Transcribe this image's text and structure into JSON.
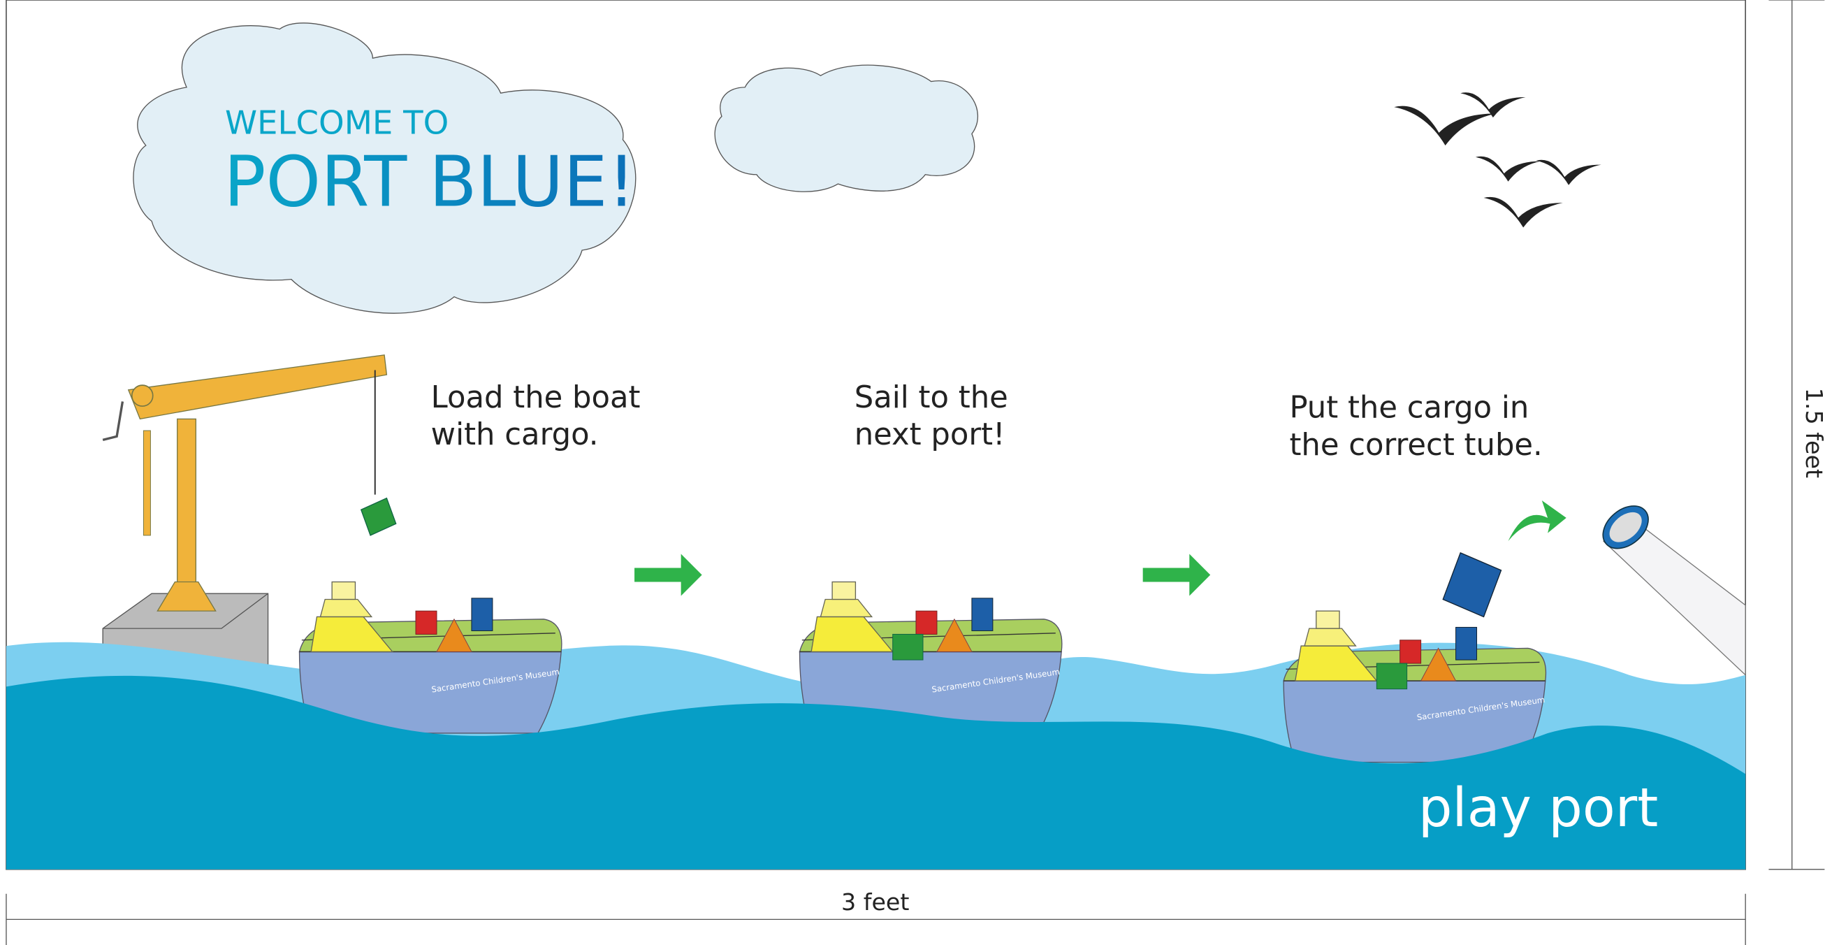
{
  "header": {
    "welcome": "WELCOME TO",
    "title": "PORT BLUE!"
  },
  "steps": [
    {
      "lines": [
        "Load the boat",
        "with cargo."
      ]
    },
    {
      "lines": [
        "Sail to the",
        "next port!"
      ]
    },
    {
      "lines": [
        "Put the cargo in",
        "the correct tube."
      ]
    }
  ],
  "boats": [
    {
      "label": "Sacramento Children's Museum"
    },
    {
      "label": "Sacramento Children's Museum"
    },
    {
      "label": "Sacramento Children's Museum"
    }
  ],
  "brand": "play port",
  "dimensions": {
    "width": "3 feet",
    "height": "1.5 feet"
  }
}
